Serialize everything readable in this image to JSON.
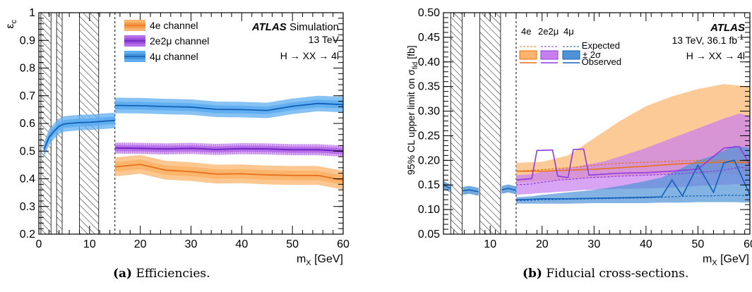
{
  "captions": {
    "a_label": "(a)",
    "a_text": "Efficiencies.",
    "b_label": "(b)",
    "b_text": "Fiducial cross-sections."
  },
  "chart_data": [
    {
      "type": "line",
      "panel": "a",
      "ylabel": "ε",
      "ylabel_sub": "c",
      "xlabel": "m",
      "xlabel_sub": "X",
      "xlabel_unit": " [GeV]",
      "xlim": [
        0,
        60
      ],
      "ylim": [
        0.2,
        1.0
      ],
      "xticks": [
        0,
        10,
        20,
        30,
        40,
        50,
        60
      ],
      "yticks": [
        0.2,
        0.3,
        0.4,
        0.5,
        0.6,
        0.7,
        0.8,
        0.9,
        1
      ],
      "atlas": "ATLAS",
      "atlas_suffix": " Simulation",
      "energy": "13 TeV",
      "process": "H → XX → 4l",
      "hatched_regions_x": [
        [
          0.4,
          2.4
        ],
        [
          3.5,
          4.6
        ],
        [
          8,
          11.8
        ]
      ],
      "boundary_x": 15,
      "series": [
        {
          "name": "4e channel",
          "color": "#e8711b",
          "band_color": "#fbb46b",
          "x": [
            15,
            20,
            25,
            30,
            35,
            40,
            45,
            50,
            55,
            60
          ],
          "y": [
            0.443,
            0.452,
            0.431,
            0.426,
            0.417,
            0.418,
            0.414,
            0.412,
            0.412,
            0.395
          ],
          "band_outer": 0.034,
          "band_inner": 0.017
        },
        {
          "name": "2e2μ channel",
          "color": "#6a1fbf",
          "band_color": "#b66be8",
          "x": [
            15,
            20,
            25,
            30,
            35,
            40,
            45,
            50,
            55,
            60
          ],
          "y": [
            0.511,
            0.51,
            0.508,
            0.51,
            0.506,
            0.509,
            0.508,
            0.505,
            0.505,
            0.5
          ],
          "band_outer": 0.02,
          "band_inner": 0.011
        },
        {
          "name": "4μ channel",
          "color": "#1360b8",
          "band_color": "#5faef0",
          "x": [
            1,
            2,
            3,
            4,
            5,
            6,
            8,
            10,
            12,
            15
          ],
          "y": [
            0.505,
            0.55,
            0.572,
            0.59,
            0.598,
            0.6,
            0.603,
            0.604,
            0.607,
            0.611
          ],
          "x2": [
            15,
            20,
            25,
            30,
            35,
            40,
            45,
            50,
            55,
            60
          ],
          "y2": [
            0.665,
            0.664,
            0.661,
            0.659,
            0.651,
            0.65,
            0.647,
            0.662,
            0.672,
            0.668
          ],
          "band_outer": 0.028,
          "band_inner": 0.014
        }
      ]
    },
    {
      "type": "line",
      "panel": "b",
      "ylabel_main": "95% CL upper limit on σ",
      "ylabel_sub": "fid",
      "ylabel_unit": " [fb]",
      "xlabel": "m",
      "xlabel_sub": "X",
      "xlabel_unit": " [GeV]",
      "xlim": [
        1,
        60
      ],
      "ylim": [
        0.05,
        0.5
      ],
      "xticks": [
        10,
        20,
        30,
        40,
        50,
        60
      ],
      "yticks": [
        0.05,
        0.1,
        0.15,
        0.2,
        0.25,
        0.3,
        0.35,
        0.4,
        0.45,
        0.5
      ],
      "atlas": "ATLAS",
      "energy_lumi": "13 TeV, 36.1 fb",
      "lumi_sup": "-1",
      "process": "H → XX → 4l",
      "legend_channels": [
        "4e",
        "2e2μ",
        "4μ"
      ],
      "legend_expected": "Expected",
      "legend_band": "± 2σ",
      "legend_observed": "Observed",
      "hatched_regions_x": [
        [
          2.4,
          4.6
        ],
        [
          8,
          12
        ]
      ],
      "boundary_x": 15,
      "low_mass_4mu": {
        "observed_segments": [
          {
            "x": [
              1,
              2.3
            ],
            "y": [
              0.15,
              0.143
            ]
          },
          {
            "x": [
              4.7,
              6,
              7.8
            ],
            "y": [
              0.138,
              0.14,
              0.136
            ]
          },
          {
            "x": [
              12.2,
              13.5,
              15
            ],
            "y": [
              0.14,
              0.143,
              0.139
            ]
          }
        ]
      },
      "series": [
        {
          "name": "4e",
          "color": "#e8711b",
          "band_color": "#fbb46b",
          "x": [
            15,
            20,
            25,
            30,
            35,
            40,
            45,
            50,
            55,
            60
          ],
          "expected": [
            0.178,
            0.181,
            0.185,
            0.19,
            0.194,
            0.196,
            0.198,
            0.2,
            0.2,
            0.198
          ],
          "observed": [
            0.178,
            0.178,
            0.18,
            0.182,
            0.185,
            0.188,
            0.192,
            0.195,
            0.196,
            0.195
          ],
          "band_lo": [
            0.155,
            0.158,
            0.162,
            0.165,
            0.168,
            0.17,
            0.172,
            0.172,
            0.172,
            0.17
          ],
          "band_hi": [
            0.195,
            0.197,
            0.21,
            0.245,
            0.28,
            0.31,
            0.33,
            0.345,
            0.355,
            0.35
          ]
        },
        {
          "name": "2e2μ",
          "color": "#8f3ae0",
          "band_color": "#c77ff0",
          "x": [
            15,
            18,
            19,
            22,
            23,
            25,
            26,
            28,
            29,
            32,
            35,
            40,
            45,
            50,
            55,
            58,
            60
          ],
          "expected": [
            0.15,
            0.152,
            0.154,
            0.158,
            0.16,
            0.161,
            0.162,
            0.164,
            0.165,
            0.166,
            0.168,
            0.17,
            0.172,
            0.175,
            0.18,
            0.186,
            0.184
          ],
          "observed": [
            0.16,
            0.163,
            0.22,
            0.221,
            0.168,
            0.165,
            0.222,
            0.223,
            0.17,
            0.172,
            0.174,
            0.175,
            0.178,
            0.182,
            0.225,
            0.228,
            0.19
          ],
          "band_lo": [
            0.13,
            0.132,
            0.133,
            0.135,
            0.136,
            0.137,
            0.138,
            0.14,
            0.14,
            0.141,
            0.142,
            0.143,
            0.145,
            0.148,
            0.15,
            0.152,
            0.15
          ],
          "band_hi": [
            0.17,
            0.172,
            0.175,
            0.18,
            0.182,
            0.184,
            0.186,
            0.19,
            0.192,
            0.198,
            0.208,
            0.225,
            0.245,
            0.265,
            0.285,
            0.295,
            0.29
          ]
        },
        {
          "name": "4μ",
          "color": "#1360b8",
          "band_color": "#4f93d6",
          "x": [
            15,
            18,
            20,
            25,
            30,
            35,
            40,
            43,
            45,
            47,
            50,
            53,
            55,
            57,
            60
          ],
          "expected": [
            0.118,
            0.119,
            0.12,
            0.121,
            0.122,
            0.123,
            0.124,
            0.125,
            0.126,
            0.127,
            0.128,
            0.128,
            0.129,
            0.129,
            0.128
          ],
          "observed": [
            0.12,
            0.121,
            0.122,
            0.122,
            0.123,
            0.124,
            0.125,
            0.126,
            0.16,
            0.128,
            0.19,
            0.135,
            0.195,
            0.2,
            0.13
          ],
          "band_lo": [
            0.112,
            0.112,
            0.112,
            0.112,
            0.113,
            0.113,
            0.113,
            0.114,
            0.114,
            0.114,
            0.115,
            0.115,
            0.115,
            0.115,
            0.114
          ],
          "band_hi": [
            0.125,
            0.127,
            0.13,
            0.135,
            0.14,
            0.148,
            0.158,
            0.165,
            0.175,
            0.185,
            0.2,
            0.21,
            0.22,
            0.23,
            0.225
          ]
        }
      ]
    }
  ]
}
